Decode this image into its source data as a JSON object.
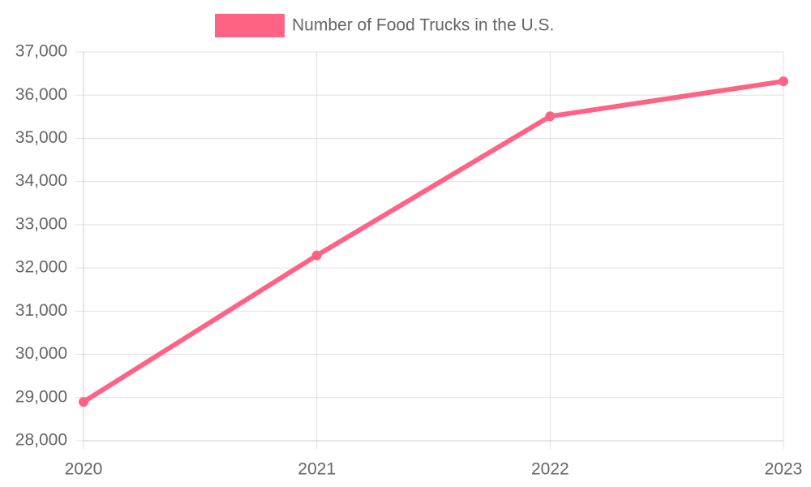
{
  "chart_data": {
    "type": "line",
    "categories": [
      "2020",
      "2021",
      "2022",
      "2023"
    ],
    "series": [
      {
        "name": "Number of Food Trucks in the U.S.",
        "color": "#ff6384",
        "values": [
          28900,
          32290,
          35510,
          36320
        ]
      }
    ],
    "ylim": [
      28000,
      37000
    ],
    "yticks": [
      {
        "value": 28000,
        "label": "28,000"
      },
      {
        "value": 29000,
        "label": "29,000"
      },
      {
        "value": 30000,
        "label": "30,000"
      },
      {
        "value": 31000,
        "label": "31,000"
      },
      {
        "value": 32000,
        "label": "32,000"
      },
      {
        "value": 33000,
        "label": "33,000"
      },
      {
        "value": 34000,
        "label": "34,000"
      },
      {
        "value": 35000,
        "label": "35,000"
      },
      {
        "value": 36000,
        "label": "36,000"
      },
      {
        "value": 37000,
        "label": "37,000"
      }
    ],
    "grid": true,
    "legend": "top"
  }
}
